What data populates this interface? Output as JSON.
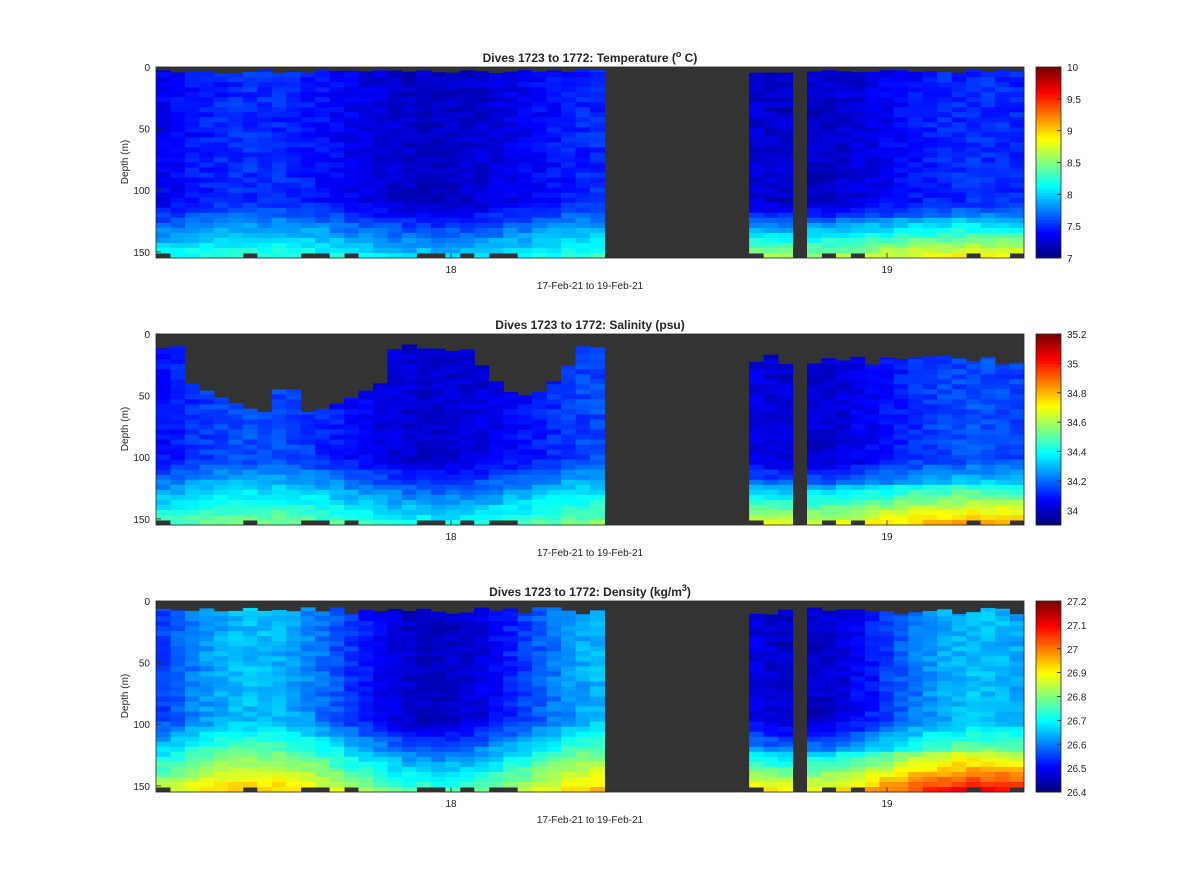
{
  "palette": {
    "nodata": "#333333",
    "axis": "#262626",
    "background": "#ffffff",
    "colormap": "jet"
  },
  "chart_data": [
    {
      "type": "heatmap",
      "variable": "temperature",
      "title_text": "Dives 1723 to 1772: Temperature (",
      "title_sup": "o",
      "title_end": " C)",
      "xlabel": "17-Feb-21 to 19-Feb-21",
      "ylabel": "Depth (m)",
      "yticks": [
        0,
        50,
        100,
        150
      ],
      "ylim": [
        0,
        155
      ],
      "xticks": [
        {
          "label": "18"
        },
        {
          "label": "19"
        }
      ],
      "clim": [
        7,
        10
      ],
      "cticks": [
        "7",
        "7.5",
        "8",
        "8.5",
        "9",
        "9.5",
        "10"
      ],
      "colorbar_ticks": [
        7,
        7.5,
        8,
        8.5,
        9,
        9.5,
        10
      ],
      "surface_profile": "flat",
      "pattern": {
        "base": 7.35,
        "mid_bump": 0.15,
        "deep_gain": 0.85,
        "deep_depth": 108,
        "right_warm": 0.35
      }
    },
    {
      "type": "heatmap",
      "variable": "salinity",
      "title_text": "Dives 1723 to 1772: Salinity (psu)",
      "title_sup": "",
      "title_end": "",
      "xlabel": "17-Feb-21 to 19-Feb-21",
      "ylabel": "Depth (m)",
      "yticks": [
        0,
        50,
        100,
        150
      ],
      "ylim": [
        0,
        155
      ],
      "xticks": [
        {
          "label": "18"
        },
        {
          "label": "19"
        }
      ],
      "clim": [
        33.9,
        35.2
      ],
      "cticks": [
        "34",
        "34.2",
        "34.4",
        "34.6",
        "34.8",
        "35",
        "35.2"
      ],
      "colorbar_ticks": [
        34,
        34.2,
        34.4,
        34.6,
        34.8,
        35,
        35.2
      ],
      "surface_profile": "salinity",
      "pattern": {
        "base": 34.08,
        "mid_bump": 0.08,
        "deep_gain": 0.42,
        "deep_depth": 100,
        "right_warm": 0.2
      }
    },
    {
      "type": "heatmap",
      "variable": "density",
      "title_text": "Dives 1723 to 1772: Density (kg/m",
      "title_sup": "3",
      "title_end": ")",
      "xlabel": "17-Feb-21 to 19-Feb-21",
      "ylabel": "Depth (m)",
      "yticks": [
        0,
        50,
        100,
        150
      ],
      "ylim": [
        0,
        155
      ],
      "xticks": [
        {
          "label": "18"
        },
        {
          "label": "19"
        }
      ],
      "clim": [
        26.4,
        27.2
      ],
      "cticks": [
        "26.4",
        "26.5",
        "26.6",
        "26.7",
        "26.8",
        "26.9",
        "27",
        "27.1",
        "27.2"
      ],
      "colorbar_ticks": [
        26.4,
        26.5,
        26.6,
        26.7,
        26.8,
        26.9,
        27,
        27.1,
        27.2
      ],
      "surface_profile": "density",
      "pattern": {
        "base": 26.55,
        "mid_bump": 0.1,
        "deep_gain": 0.32,
        "deep_depth": 95,
        "right_warm": 0.12
      }
    }
  ]
}
